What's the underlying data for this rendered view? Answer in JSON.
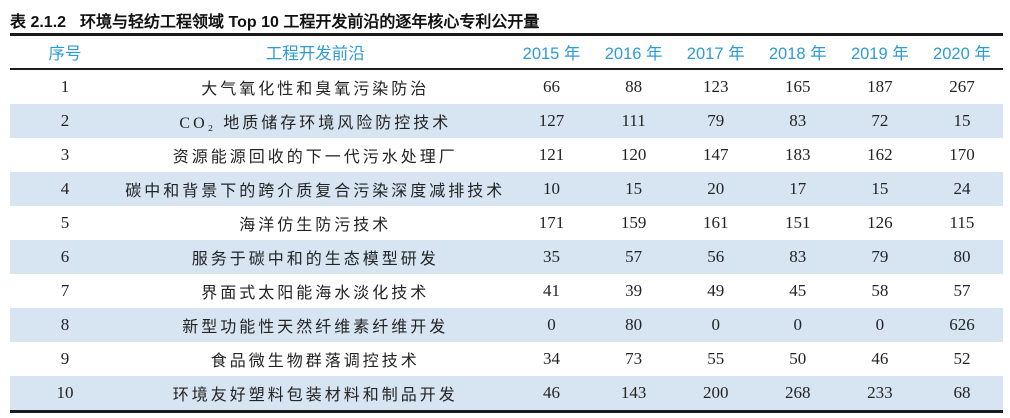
{
  "caption": {
    "label": "表 2.1.2",
    "text": "环境与轻纺工程领域 Top 10 工程开发前沿的逐年核心专利公开量"
  },
  "colors": {
    "header_text": "#2e9bd6",
    "stripe": "#d7e4f1",
    "rule": "#1b1b1b",
    "body_text": "#232323"
  },
  "table": {
    "headers": [
      "序号",
      "工程开发前沿",
      "2015 年",
      "2016 年",
      "2017 年",
      "2018 年",
      "2019 年",
      "2020 年"
    ],
    "rows": [
      {
        "no": "1",
        "front": "大气氧化性和臭氧污染防治",
        "values": [
          "66",
          "88",
          "123",
          "165",
          "187",
          "267"
        ]
      },
      {
        "no": "2",
        "front": "CO₂ 地质储存环境风险防控技术",
        "values": [
          "127",
          "111",
          "79",
          "83",
          "72",
          "15"
        ]
      },
      {
        "no": "3",
        "front": "资源能源回收的下一代污水处理厂",
        "values": [
          "121",
          "120",
          "147",
          "183",
          "162",
          "170"
        ]
      },
      {
        "no": "4",
        "front": "碳中和背景下的跨介质复合污染深度减排技术",
        "values": [
          "10",
          "15",
          "20",
          "17",
          "15",
          "24"
        ]
      },
      {
        "no": "5",
        "front": "海洋仿生防污技术",
        "values": [
          "171",
          "159",
          "161",
          "151",
          "126",
          "115"
        ]
      },
      {
        "no": "6",
        "front": "服务于碳中和的生态模型研发",
        "values": [
          "35",
          "57",
          "56",
          "83",
          "79",
          "80"
        ]
      },
      {
        "no": "7",
        "front": "界面式太阳能海水淡化技术",
        "values": [
          "41",
          "39",
          "49",
          "45",
          "58",
          "57"
        ]
      },
      {
        "no": "8",
        "front": "新型功能性天然纤维素纤维开发",
        "values": [
          "0",
          "80",
          "0",
          "0",
          "0",
          "626"
        ]
      },
      {
        "no": "9",
        "front": "食品微生物群落调控技术",
        "values": [
          "34",
          "73",
          "55",
          "50",
          "46",
          "52"
        ]
      },
      {
        "no": "10",
        "front": "环境友好塑料包装材料和制品开发",
        "values": [
          "46",
          "143",
          "200",
          "268",
          "233",
          "68"
        ]
      }
    ]
  }
}
